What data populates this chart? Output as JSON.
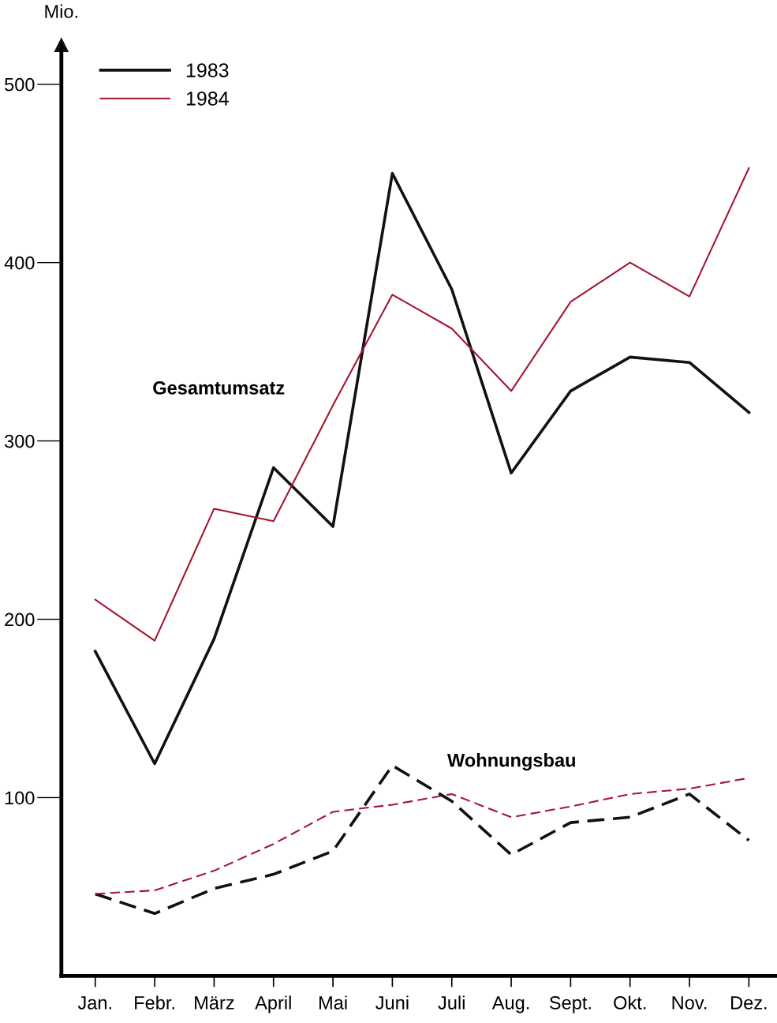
{
  "chart_data": {
    "type": "line",
    "ylabel": "Mio.",
    "categories": [
      "Jan.",
      "Febr.",
      "März",
      "April",
      "Mai",
      "Juni",
      "Juli",
      "Aug.",
      "Sept.",
      "Okt.",
      "Nov.",
      "Dez."
    ],
    "series": [
      {
        "name": "1983",
        "color": "#111111",
        "line_style": "solid",
        "values": [
          182,
          119,
          189,
          285,
          252,
          450,
          385,
          282,
          328,
          347,
          344,
          316
        ]
      },
      {
        "name": "1984",
        "color": "#a3162f",
        "line_style": "solid",
        "values": [
          211,
          188,
          262,
          255,
          320,
          382,
          363,
          328,
          378,
          400,
          381,
          453
        ]
      },
      {
        "color": "#111111",
        "line_style": "dashed",
        "values": [
          46,
          35,
          49,
          57,
          70,
          118,
          98,
          68,
          86,
          89,
          102,
          76
        ]
      },
      {
        "color": "#a3162f",
        "line_style": "dashed",
        "values": [
          46,
          48,
          59,
          74,
          92,
          96,
          102,
          89,
          95,
          102,
          105,
          111
        ]
      }
    ],
    "ylim": [
      0,
      522
    ],
    "yticks": [
      100,
      200,
      300,
      400,
      500
    ],
    "annotations": [
      "Gesamtumsatz",
      "Wohnungsbau"
    ],
    "legend": "top left",
    "grid": false,
    "marker": "none"
  }
}
